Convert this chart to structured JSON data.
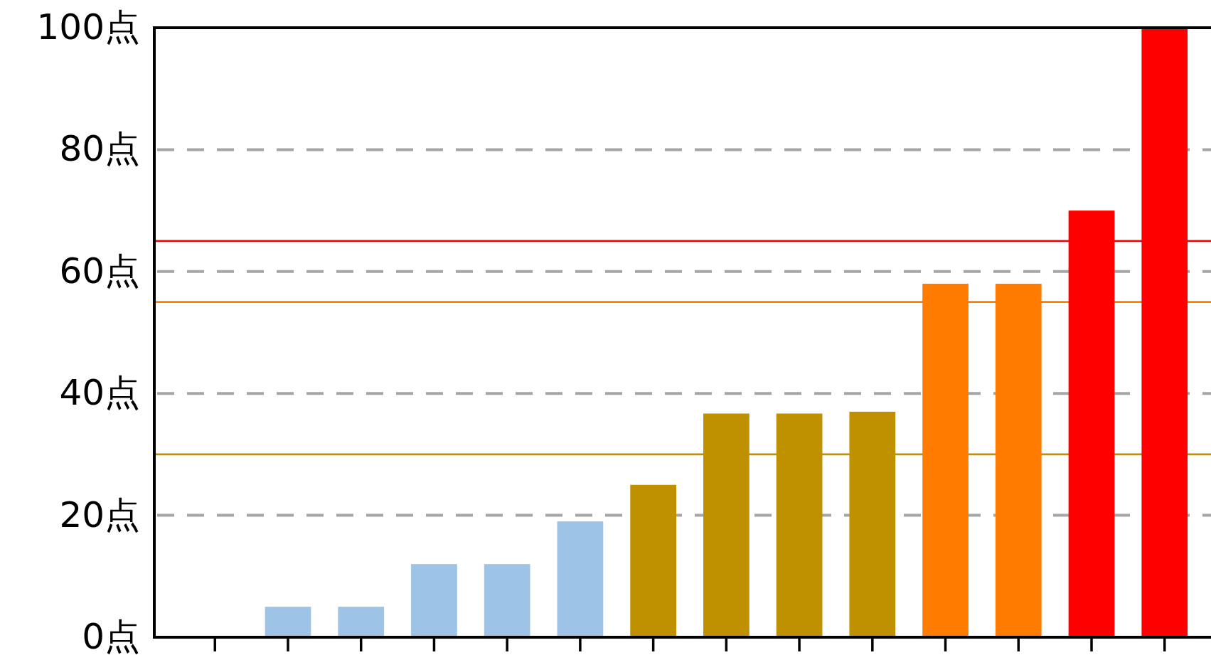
{
  "chart_data": {
    "type": "bar",
    "categories": [
      null,
      null,
      null,
      null,
      null,
      null,
      null,
      null,
      null,
      null,
      null,
      null,
      null,
      null
    ],
    "values": [
      null,
      5,
      5,
      12,
      12,
      19,
      25,
      36.7,
      36.7,
      37,
      58,
      58,
      70,
      100
    ],
    "colors": [
      null,
      "#9dc3e6",
      "#9dc3e6",
      "#9dc3e6",
      "#9dc3e6",
      "#9dc3e6",
      "#bf9000",
      "#bf9000",
      "#bf9000",
      "#bf9000",
      "#ff7c00",
      "#ff7c00",
      "#ff0000",
      "#ff0000"
    ],
    "ylim": [
      0,
      100
    ],
    "yticks": [
      {
        "value": 0,
        "label": "0点"
      },
      {
        "value": 20,
        "label": "20点"
      },
      {
        "value": 40,
        "label": "40点"
      },
      {
        "value": 60,
        "label": "60点"
      },
      {
        "value": 80,
        "label": "80点"
      },
      {
        "value": 100,
        "label": "100点"
      }
    ],
    "grid": "y",
    "ref_lines": [
      {
        "axis": "y",
        "value": 65,
        "color": "#ff0000"
      },
      {
        "axis": "y",
        "value": 55,
        "color": "#ff7c00"
      },
      {
        "axis": "y",
        "value": 30,
        "color": "#bf9000"
      }
    ]
  }
}
